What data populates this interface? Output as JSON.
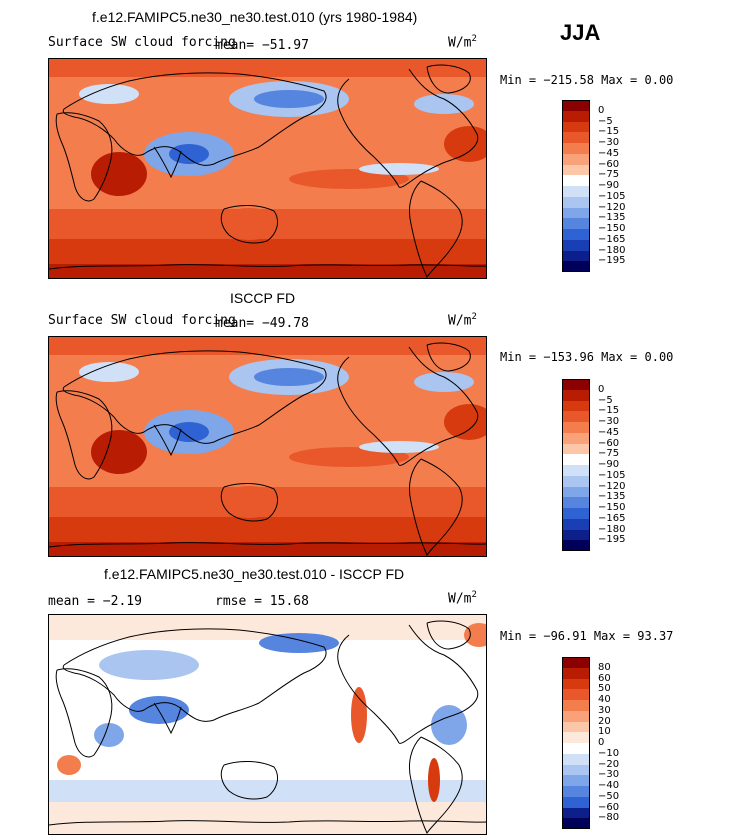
{
  "season": "JJA",
  "units_label": "W/m",
  "units_sup": "2",
  "panels": [
    {
      "title": "f.e12.FAMIPC5.ne30_ne30.test.010 (yrs 1980-1984)",
      "variable": "Surface SW cloud forcing",
      "mean_text": "mean= −51.97",
      "rmse_text": "",
      "minmax_text": "Min = −215.58 Max =    0.00",
      "legend": "abs"
    },
    {
      "title": "ISCCP FD",
      "variable": "Surface SW cloud forcing",
      "mean_text": "mean= −49.78",
      "rmse_text": "",
      "minmax_text": "Min = −153.96 Max =    0.00",
      "legend": "abs"
    },
    {
      "title": "f.e12.FAMIPC5.ne30_ne30.test.010 - ISCCP FD",
      "variable": "",
      "mean_text": "mean =   −2.19",
      "rmse_text": "rmse =   15.68",
      "minmax_text": "Min = −96.91 Max =  93.37",
      "legend": "diff"
    }
  ],
  "chart_data": [
    {
      "type": "heatmap",
      "title": "f.e12.FAMIPC5.ne30_ne30.test.010 (yrs 1980-1984)",
      "subtitle": "Surface SW cloud forcing",
      "units": "W/m2",
      "mean": -51.97,
      "min": -215.58,
      "max": 0.0,
      "levels": [
        0,
        -5,
        -15,
        -30,
        -45,
        -60,
        -75,
        -90,
        -105,
        -120,
        -135,
        -150,
        -165,
        -180,
        -195
      ],
      "colors": [
        "#8b0000",
        "#b81d04",
        "#d63a0e",
        "#e8582a",
        "#f47d4e",
        "#f9a27a",
        "#fcc7a8",
        "#ffffff",
        "#cfe0f7",
        "#a9c5f0",
        "#7fa6e8",
        "#5585de",
        "#2f62d2",
        "#1a3fb5",
        "#0c1f8a",
        "#00005a"
      ]
    },
    {
      "type": "heatmap",
      "title": "ISCCP FD",
      "subtitle": "Surface SW cloud forcing",
      "units": "W/m2",
      "mean": -49.78,
      "min": -153.96,
      "max": 0.0,
      "levels": [
        0,
        -5,
        -15,
        -30,
        -45,
        -60,
        -75,
        -90,
        -105,
        -120,
        -135,
        -150,
        -165,
        -180,
        -195
      ],
      "colors": [
        "#8b0000",
        "#b81d04",
        "#d63a0e",
        "#e8582a",
        "#f47d4e",
        "#f9a27a",
        "#fcc7a8",
        "#ffffff",
        "#cfe0f7",
        "#a9c5f0",
        "#7fa6e8",
        "#5585de",
        "#2f62d2",
        "#1a3fb5",
        "#0c1f8a",
        "#00005a"
      ]
    },
    {
      "type": "heatmap",
      "title": "f.e12.FAMIPC5.ne30_ne30.test.010 - ISCCP FD",
      "units": "W/m2",
      "mean": -2.19,
      "rmse": 15.68,
      "min": -96.91,
      "max": 93.37,
      "levels": [
        80,
        60,
        50,
        40,
        30,
        20,
        10,
        0,
        -10,
        -20,
        -30,
        -40,
        -50,
        -60,
        -80
      ],
      "colors": [
        "#8b0000",
        "#b81d04",
        "#d63a0e",
        "#e8582a",
        "#f47d4e",
        "#f9a27a",
        "#fcc7a8",
        "#fde9dc",
        "#ffffff",
        "#cfe0f7",
        "#a9c5f0",
        "#7fa6e8",
        "#5585de",
        "#2f62d2",
        "#0c1f8a",
        "#00005a"
      ]
    }
  ]
}
